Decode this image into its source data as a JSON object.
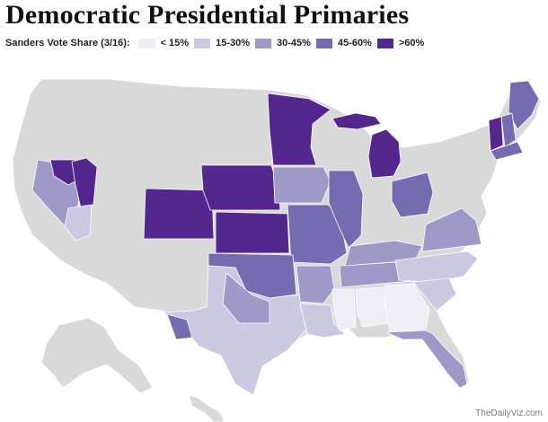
{
  "title": "Democratic Presidential Primaries",
  "legend": {
    "label": "Sanders Vote Share (3/16):",
    "bins": [
      {
        "label": "< 15%",
        "color": "#efedf5"
      },
      {
        "label": "15-30%",
        "color": "#cbc9e2"
      },
      {
        "label": "30-45%",
        "color": "#9e9ac8"
      },
      {
        "label": "45-60%",
        "color": "#756bb1"
      },
      {
        "label": ">60%",
        "color": "#54278f"
      }
    ]
  },
  "no_data_color": "#d9d9d9",
  "credit": "TheDailyViz.com"
}
